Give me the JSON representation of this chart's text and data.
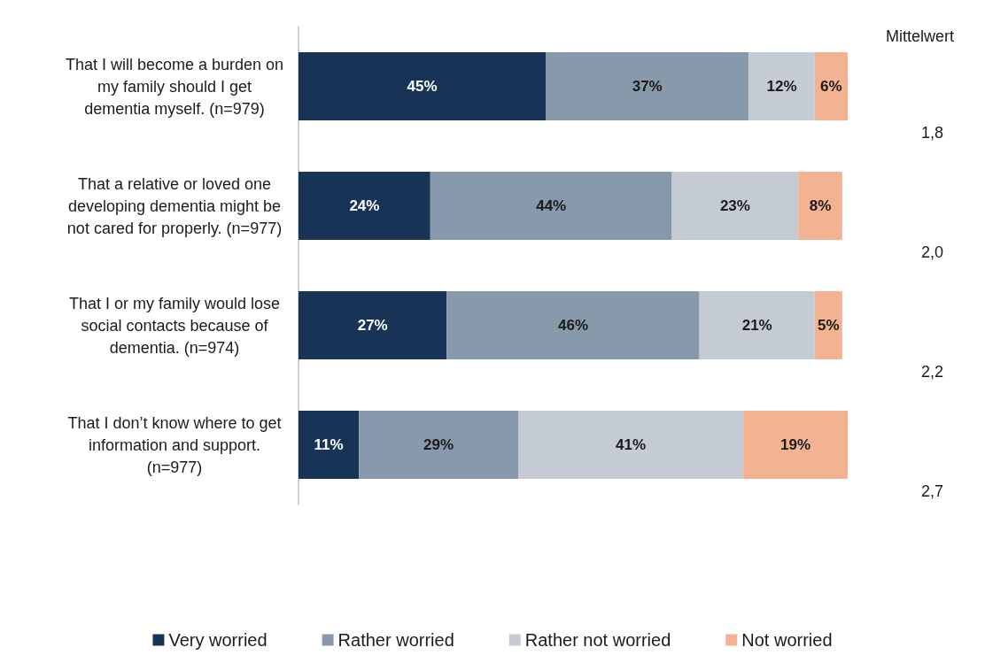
{
  "chart_data": {
    "type": "bar",
    "orientation": "horizontal",
    "stacked": true,
    "tick_labels": "y",
    "legend": "bottom",
    "grid": false,
    "categories": [
      "That I will become a burden on\nmy family should I get\ndementia myself. (n=979)",
      "That a relative or loved one\ndeveloping dementia might be\nnot cared for properly. (n=977)",
      "That I or my family would lose\nsocial contacts because of\ndementia. (n=974)",
      "That I don’t know where to get\ninformation and support.\n(n=977)"
    ],
    "series": [
      {
        "name": "Very worried",
        "color": "#173457",
        "values": [
          45,
          24,
          27,
          11
        ],
        "value_labels": [
          "45%",
          "24%",
          "27%",
          "11%"
        ]
      },
      {
        "name": "Rather worried",
        "color": "#8899ab",
        "values": [
          37,
          44,
          46,
          29
        ],
        "value_labels": [
          "37%",
          "44%",
          "46%",
          "29%"
        ]
      },
      {
        "name": "Rather not worried",
        "color": "#c4cbd5",
        "values": [
          12,
          23,
          21,
          41
        ],
        "value_labels": [
          "12%",
          "23%",
          "21%",
          "41%"
        ]
      },
      {
        "name": "Not worried",
        "color": "#f3b393",
        "values": [
          6,
          8,
          5,
          19
        ],
        "value_labels": [
          "6%",
          "8%",
          "5%",
          "19%"
        ]
      }
    ],
    "annotations": [
      "Mittelwert",
      "1,8",
      "2,0",
      "2,2",
      "2,7"
    ]
  }
}
